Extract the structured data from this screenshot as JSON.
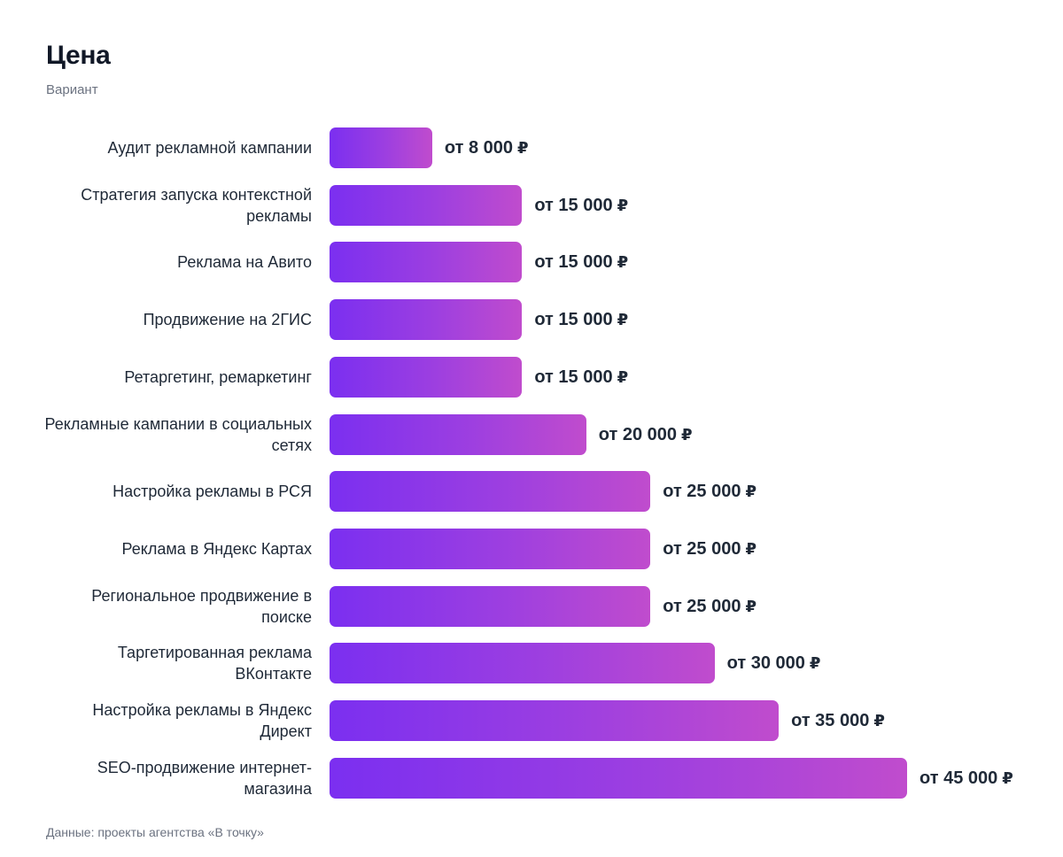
{
  "title": "Цена",
  "subtitle": "Вариант",
  "footer": "Данные: проекты агентства «В точку»",
  "chart_data": {
    "type": "bar",
    "orientation": "horizontal",
    "title": "Цена",
    "subtitle": "Вариант",
    "value_prefix": "от",
    "currency_symbol": "₽",
    "categories": [
      "Аудит рекламной кампании",
      "Стратегия запуска контекстной рекламы",
      "Реклама на Авито",
      "Продвижение на 2ГИС",
      "Ретаргетинг, ремаркетинг",
      "Рекламные кампании в социальных сетях",
      "Настройка рекламы в РСЯ",
      "Реклама в Яндекс Картах",
      "Региональное продвижение в поиске",
      "Таргетированная реклама ВКонтакте",
      "Настройка рекламы в Яндекс Директ",
      "SEO-продвижение интернет-магазина"
    ],
    "values": [
      8000,
      15000,
      15000,
      15000,
      15000,
      20000,
      25000,
      25000,
      25000,
      30000,
      35000,
      45000
    ],
    "value_labels": [
      "от 8 000",
      "от 15 000",
      "от 15 000",
      "от 15 000",
      "от 15 000",
      "от 20 000",
      "от 25 000",
      "от 25 000",
      "от 25 000",
      "от 30 000",
      "от 35 000",
      "от 45 000"
    ],
    "colors": {
      "bar_start": "#7b2ff0",
      "bar_end": "#c04ccd"
    },
    "grid": false,
    "legend": "none"
  }
}
